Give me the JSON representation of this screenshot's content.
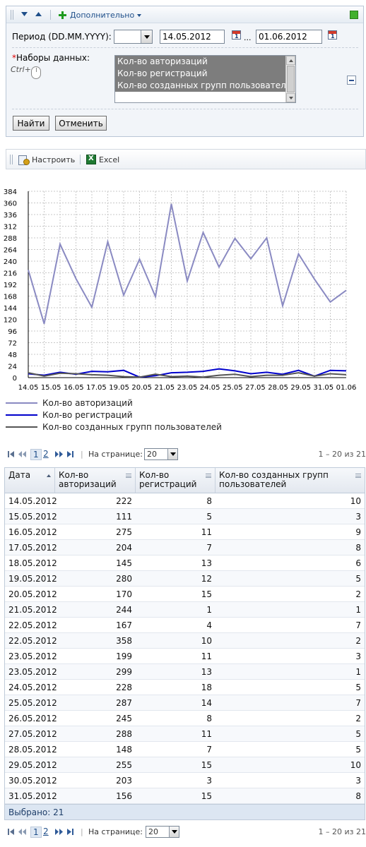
{
  "filter": {
    "more_label": "Дополнительно",
    "period_label": "Период (DD.MM.YYYY):",
    "period_type_value": "",
    "date_from": "14.05.2012",
    "range_sep": "...",
    "date_to": "01.06.2012",
    "calendar_icon_text": "1",
    "datasets_label": "Наборы данных:",
    "required_mark": "*",
    "ctrl_hint": "Ctrl+",
    "datasets": [
      "Кол-во авторизаций",
      "Кол-во регистраций",
      "Кол-во созданных групп пользователей"
    ],
    "find_label": "Найти",
    "cancel_label": "Отменить",
    "colors": {
      "panel_bg": "#f2f5f9",
      "accent_green": "#42b02e"
    }
  },
  "chart_toolbar": {
    "settings_label": "Настроить",
    "excel_label": "Excel"
  },
  "chart_data": {
    "type": "line",
    "categories": [
      "14.05",
      "15.05",
      "16.05",
      "17.05",
      "18.05",
      "19.05",
      "20.05",
      "21.05",
      "22.05",
      "22.05",
      "23.05",
      "23.05",
      "24.05",
      "25.05",
      "26.05",
      "27.05",
      "28.05",
      "29.05",
      "30.05",
      "31.05",
      "01.06"
    ],
    "tick_labels": [
      "14.05",
      "15.05",
      "16.05",
      "17.05",
      "19.05",
      "20.05",
      "21.05",
      "23.05",
      "24.05",
      "25.05",
      "27.05",
      "28.05",
      "29.05",
      "31.05",
      "01.06"
    ],
    "y_ticks": [
      0,
      24,
      48,
      72,
      96,
      120,
      144,
      168,
      192,
      216,
      240,
      264,
      288,
      312,
      336,
      360,
      384
    ],
    "ylim": [
      0,
      384
    ],
    "grid": true,
    "legend_position": "bottom",
    "series": [
      {
        "name": "Кол-во авторизаций",
        "color": "#8a8ac2",
        "values": [
          222,
          111,
          275,
          204,
          145,
          280,
          170,
          244,
          167,
          358,
          199,
          299,
          228,
          287,
          245,
          288,
          148,
          255,
          203,
          156,
          180
        ]
      },
      {
        "name": "Кол-во регистраций",
        "color": "#0000cc",
        "values": [
          8,
          5,
          11,
          7,
          13,
          12,
          15,
          1,
          4,
          10,
          11,
          13,
          18,
          14,
          8,
          11,
          7,
          15,
          3,
          15,
          14
        ]
      },
      {
        "name": "Кол-во созданных групп пользователей",
        "color": "#555555",
        "values": [
          10,
          3,
          9,
          8,
          6,
          5,
          2,
          1,
          7,
          2,
          3,
          1,
          5,
          7,
          2,
          5,
          5,
          10,
          3,
          8,
          6
        ]
      }
    ],
    "title": "",
    "xlabel": "",
    "ylabel": ""
  },
  "pager": {
    "pages": [
      "1",
      "2"
    ],
    "per_page_label": "На странице:",
    "per_page_value": "20",
    "range_text": "1 – 20 из 21"
  },
  "grid": {
    "columns": [
      "Дата",
      "Кол-во авторизаций",
      "Кол-во регистраций",
      "Кол-во созданных групп пользователей"
    ],
    "rows": [
      [
        "14.05.2012",
        "222",
        "8",
        "10"
      ],
      [
        "15.05.2012",
        "111",
        "5",
        "3"
      ],
      [
        "16.05.2012",
        "275",
        "11",
        "9"
      ],
      [
        "17.05.2012",
        "204",
        "7",
        "8"
      ],
      [
        "18.05.2012",
        "145",
        "13",
        "6"
      ],
      [
        "19.05.2012",
        "280",
        "12",
        "5"
      ],
      [
        "20.05.2012",
        "170",
        "15",
        "2"
      ],
      [
        "21.05.2012",
        "244",
        "1",
        "1"
      ],
      [
        "22.05.2012",
        "167",
        "4",
        "7"
      ],
      [
        "22.05.2012",
        "358",
        "10",
        "2"
      ],
      [
        "23.05.2012",
        "199",
        "11",
        "3"
      ],
      [
        "23.05.2012",
        "299",
        "13",
        "1"
      ],
      [
        "24.05.2012",
        "228",
        "18",
        "5"
      ],
      [
        "25.05.2012",
        "287",
        "14",
        "7"
      ],
      [
        "26.05.2012",
        "245",
        "8",
        "2"
      ],
      [
        "27.05.2012",
        "288",
        "11",
        "5"
      ],
      [
        "28.05.2012",
        "148",
        "7",
        "5"
      ],
      [
        "29.05.2012",
        "255",
        "15",
        "10"
      ],
      [
        "30.05.2012",
        "203",
        "3",
        "3"
      ],
      [
        "31.05.2012",
        "156",
        "15",
        "8"
      ]
    ],
    "footer_label": "Выбрано:",
    "footer_count": "21"
  }
}
